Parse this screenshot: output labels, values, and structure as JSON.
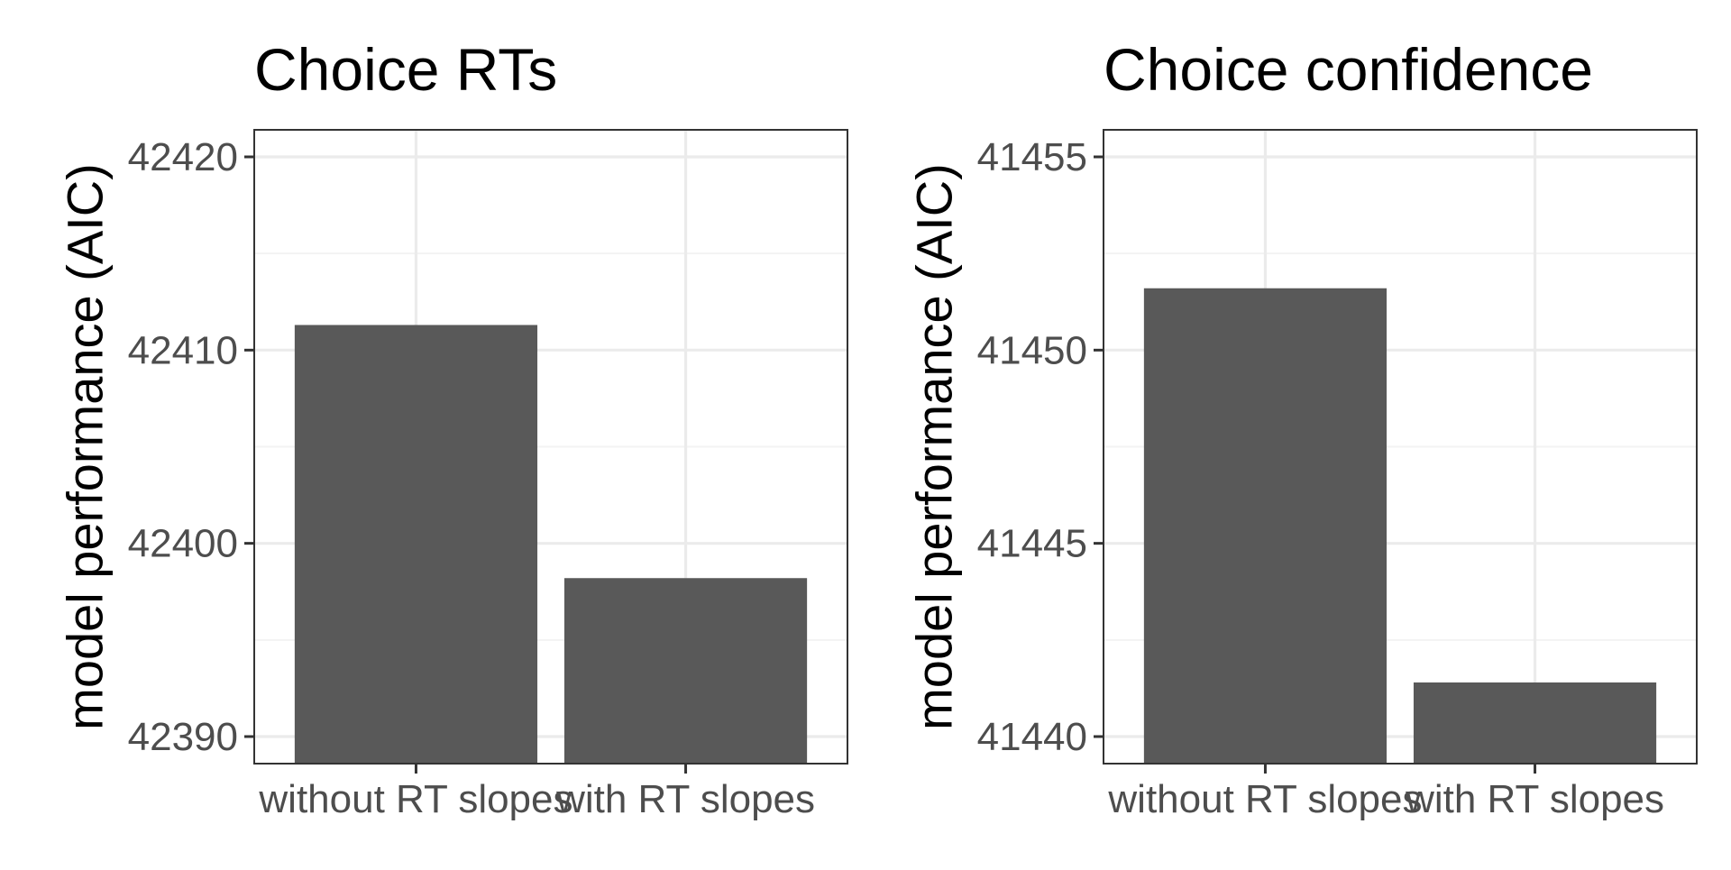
{
  "chart_data": [
    {
      "type": "bar",
      "title": "Choice RTs",
      "xlabel": "",
      "ylabel": "model performance (AIC)",
      "categories": [
        "without RT slopes",
        "with RT slopes"
      ],
      "values": [
        42411.3,
        42398.2
      ],
      "ylim": [
        42388.6,
        42421.4
      ],
      "yticks": [
        42390,
        42400,
        42410,
        42420
      ],
      "grid": true,
      "bar_color": "#595959"
    },
    {
      "type": "bar",
      "title": "Choice confidence",
      "xlabel": "",
      "ylabel": "model performance (AIC)",
      "categories": [
        "without RT slopes",
        "with RT slopes"
      ],
      "values": [
        41451.6,
        41441.4
      ],
      "ylim": [
        41439.3,
        41455.7
      ],
      "yticks": [
        41440,
        41445,
        41450,
        41455
      ],
      "grid": true,
      "bar_color": "#595959"
    }
  ]
}
